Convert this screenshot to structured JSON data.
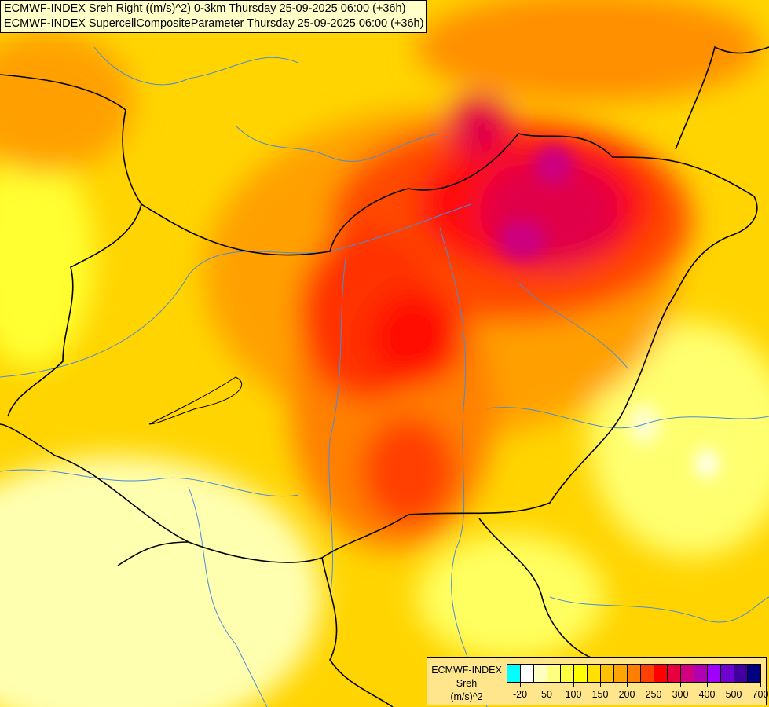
{
  "title": {
    "line1": "ECMWF-INDEX Sreh Right ((m/s)^2) 0-3km Thursday 25-09-2025 06:00 (+36h)",
    "line2": "ECMWF-INDEX SupercellCompositeParameter Thursday 25-09-2025 06:00 (+36h)"
  },
  "legend": {
    "line1": "ECMWF-INDEX",
    "line2": "Sreh",
    "line3": "(m/s)^2",
    "colors": [
      "#00ffff",
      "#ffffff",
      "#ffffc0",
      "#ffff80",
      "#ffff40",
      "#ffff00",
      "#ffe000",
      "#ffc000",
      "#ffa400",
      "#ff8000",
      "#ff4000",
      "#ff0000",
      "#e8003c",
      "#d00080",
      "#b000b0",
      "#a000ff",
      "#7000d0",
      "#4000a0",
      "#000080"
    ],
    "ticks": [
      "-20",
      "50",
      "100",
      "150",
      "200",
      "250",
      "300",
      "400",
      "500",
      "700"
    ]
  },
  "colors": {
    "border": "#000000",
    "river": "#4a8cd8"
  }
}
